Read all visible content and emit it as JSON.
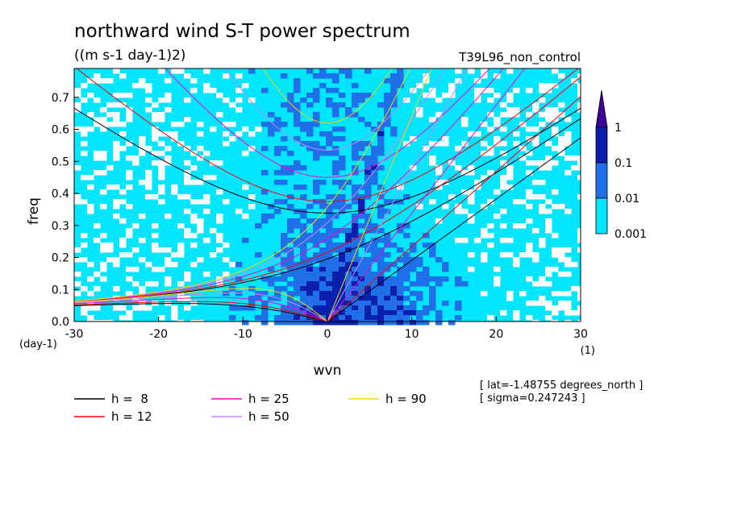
{
  "chart_data": {
    "type": "heatmap",
    "title": "northward wind S-T power spectrum",
    "units": "((m s-1 day-1)2)",
    "run_label": "T39L96_non_control",
    "xlabel": "wvn",
    "ylabel": "freq",
    "x_unit": "(1)",
    "y_unit": "(day-1)",
    "xlim": [
      -30,
      30
    ],
    "ylim": [
      0,
      0.79
    ],
    "x_ticks": [
      -30,
      -20,
      -10,
      0,
      10,
      20,
      30
    ],
    "x_tick_labels": [
      "-30",
      "-20",
      "-10",
      "0",
      "10",
      "20",
      "30"
    ],
    "y_ticks": [
      0.0,
      0.1,
      0.2,
      0.3,
      0.4,
      0.5,
      0.6,
      0.7
    ],
    "y_tick_labels": [
      "0.0",
      "0.1",
      "0.2",
      "0.3",
      "0.4",
      "0.5",
      "0.6",
      "0.7"
    ],
    "color_levels": [
      0.001,
      0.01,
      0.1,
      1
    ],
    "colorbar_labels": [
      "1",
      "0.1",
      "0.01",
      "0.001"
    ],
    "colorbar_colors": [
      "#3d0099",
      "#0a1fae",
      "#1f6fe8",
      "#00e6ff"
    ],
    "shade_colors": {
      "zero": "#ffffff",
      "low": "#00e6ff",
      "mid": "#1f6fe8",
      "high": "#0a1fae",
      "top": "#3d0099"
    },
    "dispersion_curves": [
      {
        "name": "h =  8",
        "h": 8,
        "color": "#000000"
      },
      {
        "name": "h = 12",
        "h": 12,
        "color": "#ff0000"
      },
      {
        "name": "h = 25",
        "h": 25,
        "color": "#ff00cc"
      },
      {
        "name": "h = 50",
        "h": 50,
        "color": "#cc88ff"
      },
      {
        "name": "h = 90",
        "h": 90,
        "color": "#f2d600"
      }
    ],
    "lat_note": "[ lat=-1.48755 degrees_north ]",
    "sigma_note": "[ sigma=0.247243 ]"
  }
}
